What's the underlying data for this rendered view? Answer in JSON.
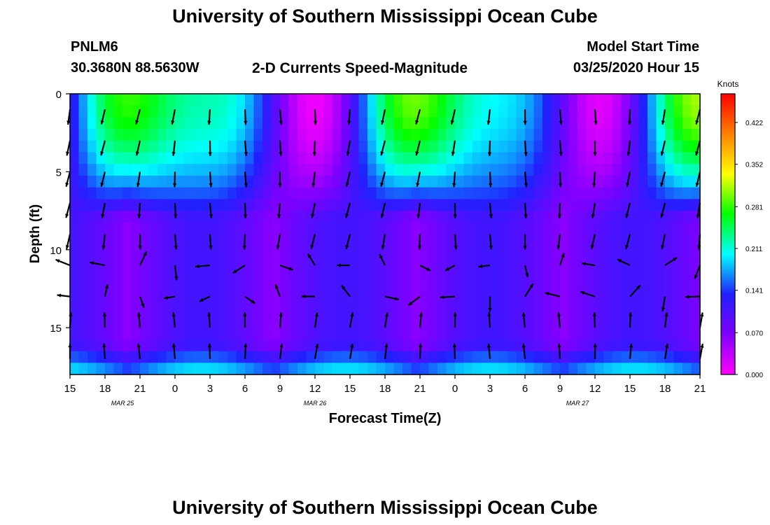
{
  "header": {
    "title_top": "University of Southern Mississippi Ocean Cube",
    "station_id": "PNLM6",
    "station_coords": "30.3680N 88.5630W",
    "plot_title": "2-D Currents Speed-Magnitude",
    "model_start_label": "Model Start Time",
    "model_start_value": "03/25/2020 Hour 15",
    "title_bottom": "University of Southern Mississippi Ocean Cube"
  },
  "chart_data": {
    "type": "heatmap",
    "title": "2-D Currents Speed-Magnitude",
    "xlabel": "Forecast Time(Z)",
    "ylabel": "Depth (ft)",
    "x_range_hours": [
      0,
      54
    ],
    "ylim": [
      0,
      18
    ],
    "y_inverted": true,
    "y_ticks": [
      0,
      5,
      10,
      15
    ],
    "x_tick_labels": [
      "15",
      "18",
      "21",
      "0",
      "3",
      "6",
      "9",
      "12",
      "15",
      "18",
      "21",
      "0",
      "3",
      "6",
      "9",
      "12",
      "15",
      "18",
      "21"
    ],
    "date_labels": [
      {
        "text": "MAR 25",
        "hour": 4.5
      },
      {
        "text": "MAR 26",
        "hour": 21
      },
      {
        "text": "MAR 27",
        "hour": 43.5
      }
    ],
    "colorbar": {
      "unit": "Knots",
      "min": 0.0,
      "max": 0.47,
      "tick_values": [
        "0.000",
        "0.070",
        "0.141",
        "0.211",
        "0.281",
        "0.352",
        "0.422"
      ],
      "colors": [
        "#ff00ff",
        "#8000ff",
        "#2020ff",
        "#00ffff",
        "#00ff00",
        "#ffff00",
        "#ff8000",
        "#ff0000"
      ]
    },
    "grid": false
  }
}
